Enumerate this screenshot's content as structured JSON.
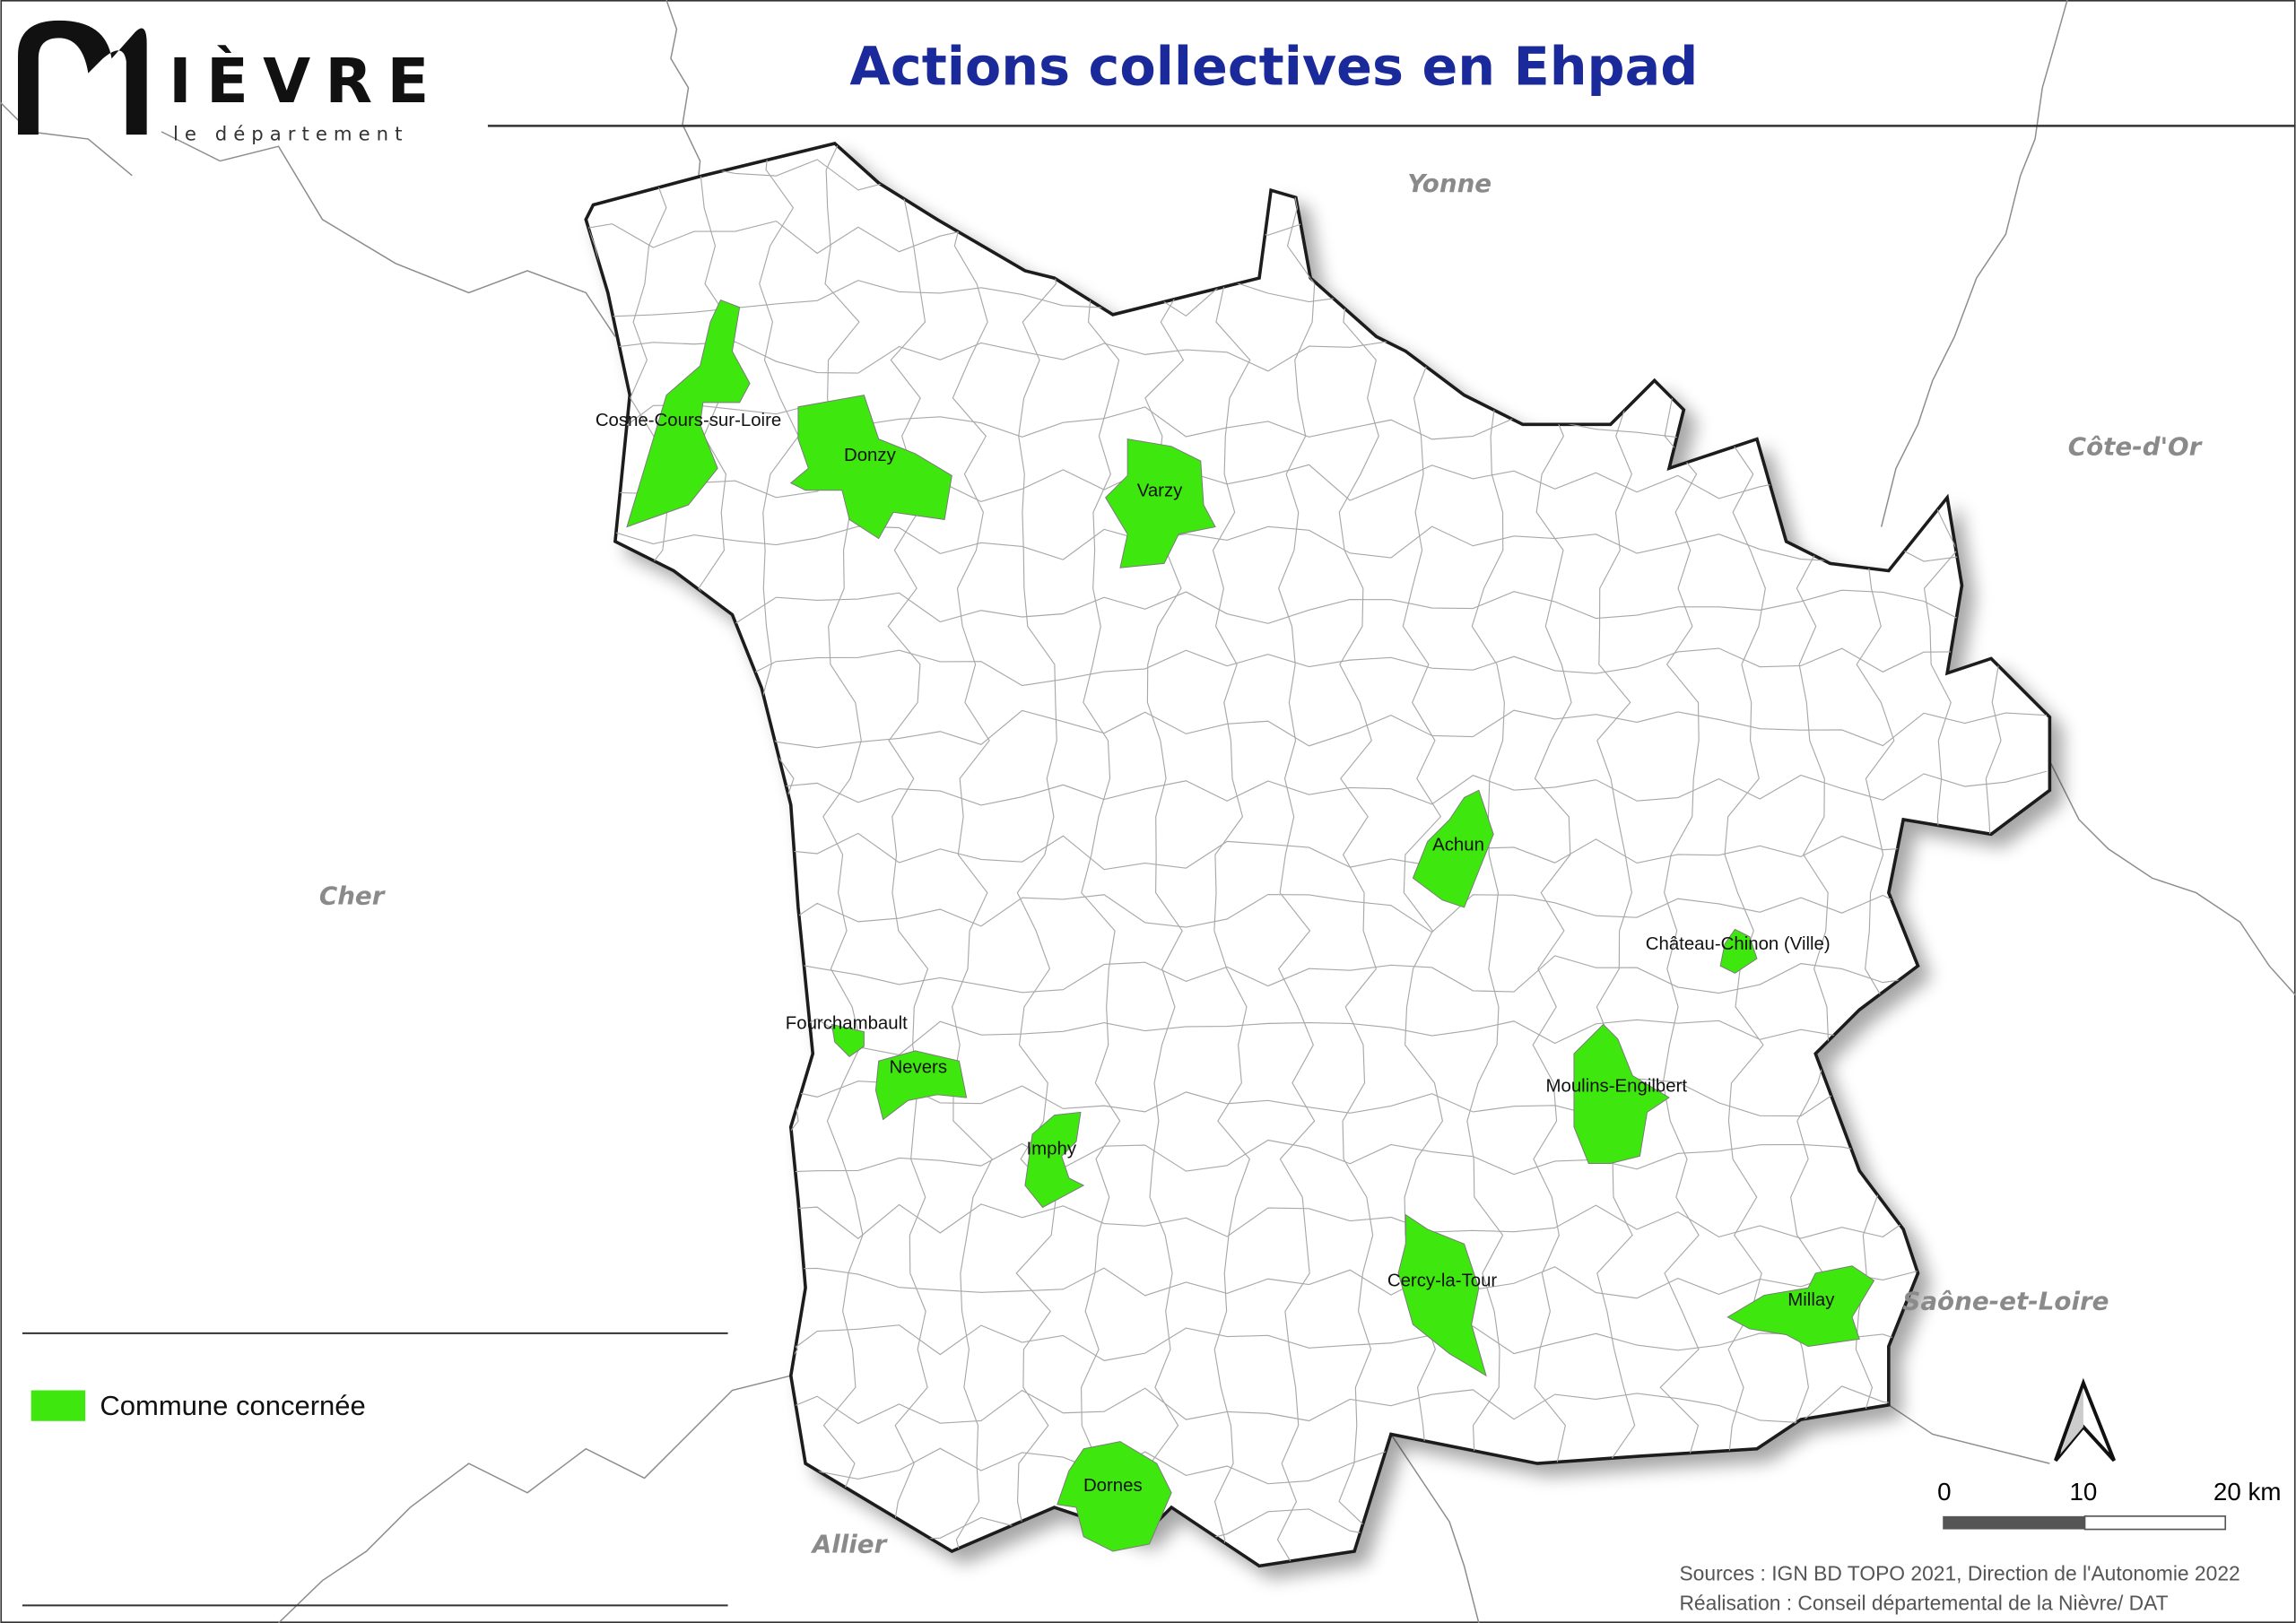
{
  "header": {
    "title": "Actions collectives en Ehpad",
    "title_color": "#1a2a9a",
    "logo_wordmark": "IÈVRE",
    "logo_subtitle": "le département"
  },
  "regions": {
    "north": "Yonne",
    "east": "Côte-d'Or",
    "west": "Cher",
    "southeast": "Saône-et-Loire",
    "south": "Allier"
  },
  "communes": [
    {
      "name": "Cosne-Cours-sur-Loire"
    },
    {
      "name": "Donzy"
    },
    {
      "name": "Varzy"
    },
    {
      "name": "Achun"
    },
    {
      "name": "Château-Chinon (Ville)"
    },
    {
      "name": "Fourchambault"
    },
    {
      "name": "Nevers"
    },
    {
      "name": "Imphy"
    },
    {
      "name": "Moulins-Engilbert"
    },
    {
      "name": "Cercy-la-Tour"
    },
    {
      "name": "Millay"
    },
    {
      "name": "Dornes"
    }
  ],
  "legend": {
    "item_label": "Commune concernée",
    "item_color": "#3ee80e"
  },
  "north_arrow": {
    "icon": "north-arrow-icon"
  },
  "scale_bar": {
    "label_0": "0",
    "label_10": "10",
    "label_20": "20 km"
  },
  "credits": {
    "sources": "Sources : IGN BD TOPO 2021, Direction de l'Autonomie 2022",
    "realisation": "Réalisation : Conseil départemental de la Nièvre/ DAT"
  }
}
